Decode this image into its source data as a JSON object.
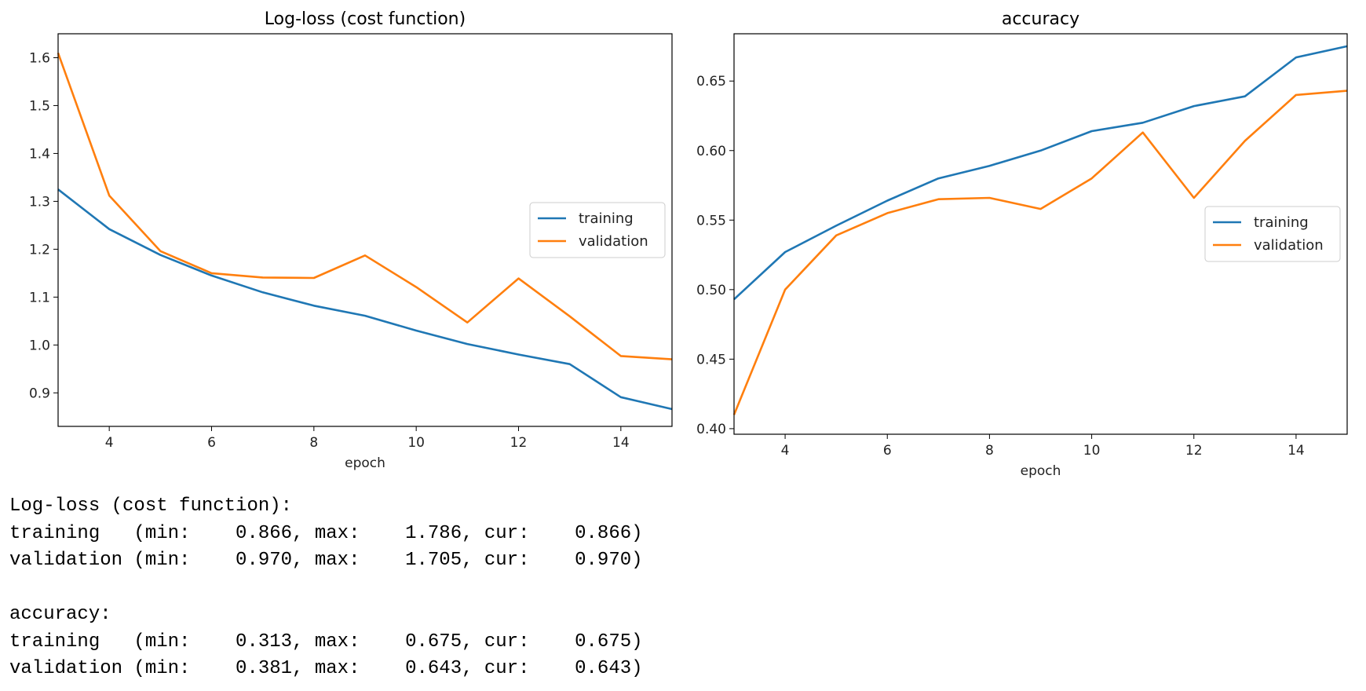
{
  "chart_data": [
    {
      "type": "line",
      "title": "Log-loss (cost function)",
      "xlabel": "epoch",
      "ylabel": "",
      "xlim": [
        3,
        15
      ],
      "ylim": [
        0.83,
        1.65
      ],
      "xticks": [
        4,
        6,
        8,
        10,
        12,
        14
      ],
      "yticks": [
        0.9,
        1.0,
        1.1,
        1.2,
        1.3,
        1.4,
        1.5,
        1.6
      ],
      "ytick_decimals": 1,
      "legend_position": "center-right",
      "grid": false,
      "series": [
        {
          "name": "training",
          "color": "#1f77b4",
          "x": [
            3,
            4,
            5,
            6,
            7,
            8,
            9,
            10,
            11,
            12,
            13,
            14,
            15
          ],
          "values": [
            1.325,
            1.242,
            1.188,
            1.145,
            1.11,
            1.082,
            1.061,
            1.03,
            1.002,
            0.98,
            0.96,
            0.891,
            0.866
          ]
        },
        {
          "name": "validation",
          "color": "#ff7f0e",
          "x": [
            3,
            4,
            5,
            6,
            7,
            8,
            9,
            10,
            11,
            12,
            13,
            14,
            15
          ],
          "values": [
            1.61,
            1.312,
            1.196,
            1.15,
            1.141,
            1.14,
            1.187,
            1.121,
            1.047,
            1.139,
            1.06,
            0.977,
            0.97
          ]
        }
      ]
    },
    {
      "type": "line",
      "title": "accuracy",
      "xlabel": "epoch",
      "ylabel": "",
      "xlim": [
        3,
        15
      ],
      "ylim": [
        0.396,
        0.684
      ],
      "xticks": [
        4,
        6,
        8,
        10,
        12,
        14
      ],
      "yticks": [
        0.4,
        0.45,
        0.5,
        0.55,
        0.6,
        0.65
      ],
      "ytick_decimals": 2,
      "legend_position": "center-right",
      "grid": false,
      "series": [
        {
          "name": "training",
          "color": "#1f77b4",
          "x": [
            3,
            4,
            5,
            6,
            7,
            8,
            9,
            10,
            11,
            12,
            13,
            14,
            15
          ],
          "values": [
            0.493,
            0.527,
            0.546,
            0.564,
            0.58,
            0.589,
            0.6,
            0.614,
            0.62,
            0.632,
            0.639,
            0.667,
            0.675
          ]
        },
        {
          "name": "validation",
          "color": "#ff7f0e",
          "x": [
            3,
            4,
            5,
            6,
            7,
            8,
            9,
            10,
            11,
            12,
            13,
            14,
            15
          ],
          "values": [
            0.41,
            0.5,
            0.539,
            0.555,
            0.565,
            0.566,
            0.558,
            0.58,
            0.613,
            0.566,
            0.607,
            0.64,
            0.643
          ]
        }
      ]
    }
  ],
  "summary_text": [
    "Log-loss (cost function):",
    "training   (min:    0.866, max:    1.786, cur:    0.866)",
    "validation (min:    0.970, max:    1.705, cur:    0.970)",
    "",
    "accuracy:",
    "training   (min:    0.313, max:    0.675, cur:    0.675)",
    "validation (min:    0.381, max:    0.643, cur:    0.643)"
  ]
}
